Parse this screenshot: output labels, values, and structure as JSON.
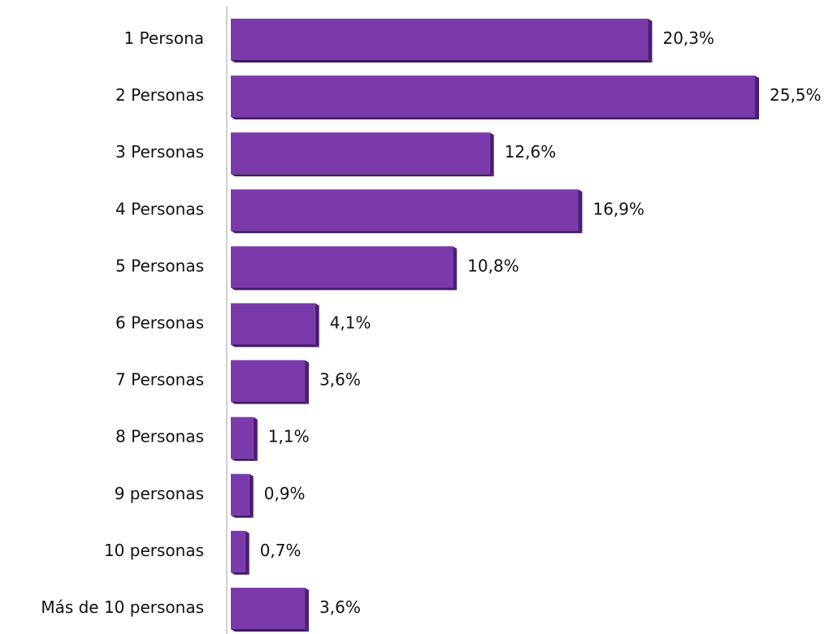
{
  "chart_data": {
    "type": "bar",
    "orientation": "horizontal",
    "categories": [
      "1 Persona",
      "2 Personas",
      "3 Personas",
      "4 Personas",
      "5 Personas",
      "6 Personas",
      "7 Personas",
      "8 Personas",
      "9 personas",
      "10 personas",
      "Más de 10 personas"
    ],
    "values": [
      20.3,
      25.5,
      12.6,
      16.9,
      10.8,
      4.1,
      3.6,
      1.1,
      0.9,
      0.7,
      3.6
    ],
    "value_labels": [
      "20,3%",
      "25,5%",
      "12,6%",
      "16,9%",
      "10,8%",
      "4,1%",
      "3,6%",
      "1,1%",
      "0,9%",
      "0,7%",
      "3,6%"
    ],
    "unit": "%",
    "title": "",
    "xlabel": "",
    "ylabel": "",
    "xlim": [
      0,
      25.5
    ],
    "grid": false,
    "legend": "none",
    "colors": {
      "bar": "#7b3aac",
      "bar_side": "#4a1f72",
      "bar_bottom": "#3f1a63",
      "axis": "#d0d0d0"
    }
  }
}
